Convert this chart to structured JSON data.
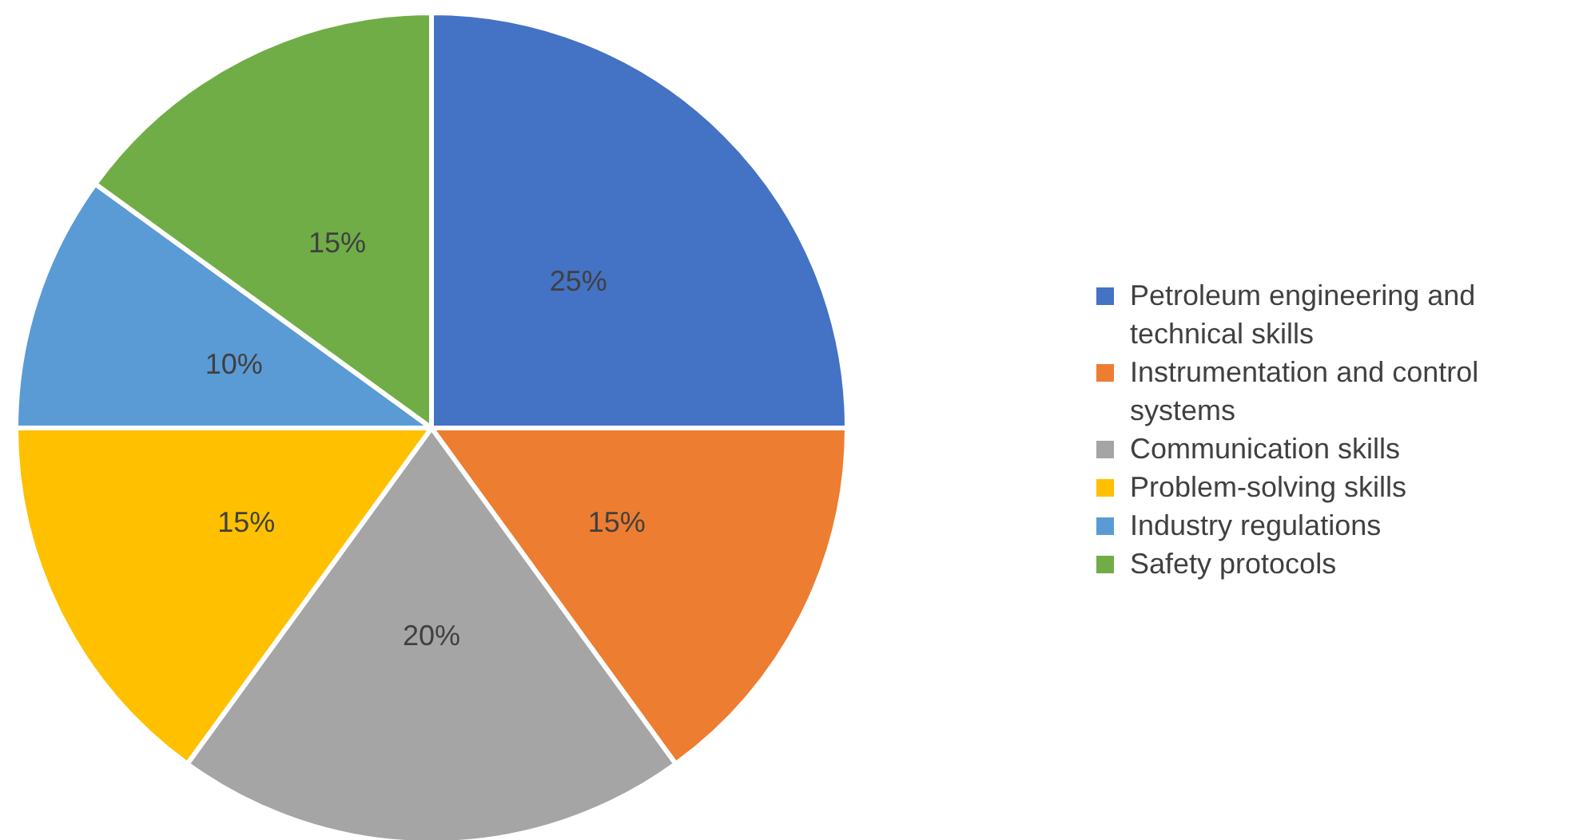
{
  "chart_data": {
    "type": "pie",
    "categories": [
      "Petroleum engineering and technical skills",
      "Instrumentation and control systems",
      "Communication skills",
      "Problem-solving skills",
      "Industry regulations",
      "Safety protocols"
    ],
    "values": [
      25,
      15,
      20,
      15,
      10,
      15
    ],
    "colors": [
      "#4472c4",
      "#ed7d31",
      "#a5a5a5",
      "#ffc000",
      "#5b9bd5",
      "#70ad47"
    ],
    "value_labels": [
      "25%",
      "15%",
      "20%",
      "15%",
      "10%",
      "15%"
    ],
    "legend": "right"
  }
}
